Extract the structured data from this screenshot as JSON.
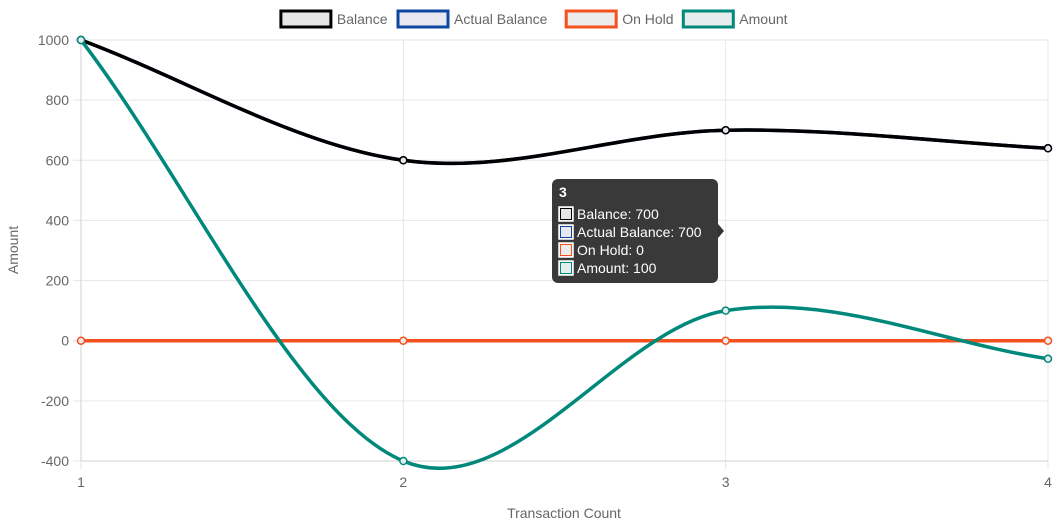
{
  "chart_data": {
    "type": "line",
    "x": [
      1,
      2,
      3,
      4
    ],
    "xlabel": "Transaction Count",
    "ylabel": "Amount",
    "ylim": [
      -400,
      1000
    ],
    "yticks": [
      1000,
      800,
      600,
      400,
      200,
      0,
      -200,
      -400
    ],
    "xticks": [
      1,
      2,
      3,
      4
    ],
    "grid": true,
    "legend_position": "top",
    "series": [
      {
        "name": "Balance",
        "values": [
          1000,
          600,
          700,
          640
        ],
        "color": "#000000",
        "fill": "#e6e6e6"
      },
      {
        "name": "Actual Balance",
        "values": [
          1000,
          600,
          700,
          640
        ],
        "color": "#0d47a1",
        "fill": "#e8e8f0"
      },
      {
        "name": "On Hold",
        "values": [
          0,
          0,
          0,
          0
        ],
        "color": "#f4511e",
        "fill": "#ececec"
      },
      {
        "name": "Amount",
        "values": [
          1000,
          -400,
          100,
          -60
        ],
        "color": "#00897b",
        "fill": "#e6eded"
      }
    ],
    "tooltip": {
      "title": "3",
      "lines": [
        "Balance: 700",
        "Actual Balance: 700",
        "On Hold: 0",
        "Amount: 100"
      ]
    }
  }
}
